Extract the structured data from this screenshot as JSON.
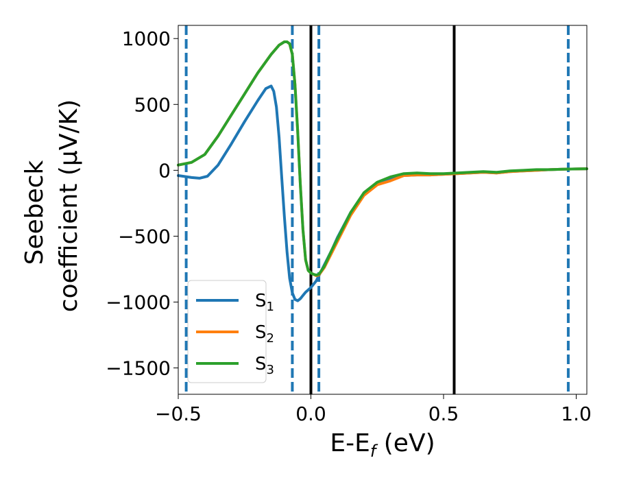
{
  "chart_data": {
    "type": "line",
    "xlabel": "E-E",
    "xlabel_sub": "f",
    "xlabel_suffix": " (eV)",
    "ylabel_line1": "Seebeck",
    "ylabel_line2": "coefficient  (μV/K)",
    "xlim": [
      -0.5,
      1.04
    ],
    "ylim": [
      -1700,
      1100
    ],
    "xticks": [
      -0.5,
      0.0,
      0.5,
      1.0
    ],
    "xtick_labels": [
      "−0.5",
      "0.0",
      "0.5",
      "1.0"
    ],
    "yticks": [
      -1500,
      -1000,
      -500,
      0,
      500,
      1000
    ],
    "ytick_labels": [
      "−1500",
      "−1000",
      "−500",
      "0",
      "500",
      "1000"
    ],
    "vlines_solid": [
      0.0,
      0.54
    ],
    "vlines_dashed": [
      -0.47,
      -0.07,
      0.03,
      0.97
    ],
    "legend_position": "lower-left",
    "series": [
      {
        "name": "S",
        "sub": "1",
        "color": "#1f77b4",
        "x": [
          -0.5,
          -0.45,
          -0.42,
          -0.39,
          -0.35,
          -0.3,
          -0.25,
          -0.2,
          -0.17,
          -0.15,
          -0.14,
          -0.13,
          -0.12,
          -0.11,
          -0.1,
          -0.09,
          -0.08,
          -0.07,
          -0.06,
          -0.05,
          -0.04,
          -0.03,
          -0.02,
          0.0,
          0.02,
          0.05,
          0.08,
          0.1,
          0.15,
          0.2,
          0.25,
          0.3,
          0.35,
          0.4,
          0.45,
          0.5,
          0.55,
          0.6,
          0.65,
          0.7,
          0.75,
          0.8,
          0.85,
          0.9,
          0.95,
          1.0,
          1.04
        ],
        "y": [
          -40,
          -55,
          -60,
          -45,
          40,
          200,
          370,
          530,
          620,
          640,
          600,
          480,
          250,
          -50,
          -350,
          -620,
          -820,
          -930,
          -980,
          -990,
          -975,
          -950,
          -925,
          -890,
          -840,
          -720,
          -600,
          -510,
          -320,
          -180,
          -95,
          -70,
          -40,
          -35,
          -35,
          -30,
          -25,
          -20,
          -15,
          -20,
          -10,
          -5,
          0,
          5,
          8,
          10,
          12
        ]
      },
      {
        "name": "S",
        "sub": "2",
        "color": "#ff7f0e",
        "x": [
          -0.5,
          -0.45,
          -0.4,
          -0.35,
          -0.3,
          -0.25,
          -0.2,
          -0.15,
          -0.12,
          -0.1,
          -0.09,
          -0.08,
          -0.07,
          -0.06,
          -0.05,
          -0.04,
          -0.03,
          -0.02,
          -0.01,
          0.0,
          0.01,
          0.02,
          0.03,
          0.05,
          0.08,
          0.1,
          0.15,
          0.2,
          0.25,
          0.3,
          0.35,
          0.4,
          0.45,
          0.5,
          0.55,
          0.6,
          0.65,
          0.7,
          0.75,
          0.8,
          0.85,
          0.9,
          0.95,
          1.0,
          1.04
        ],
        "y": [
          40,
          60,
          120,
          260,
          420,
          580,
          740,
          880,
          950,
          975,
          975,
          960,
          880,
          650,
          300,
          -100,
          -450,
          -680,
          -760,
          -780,
          -790,
          -800,
          -795,
          -740,
          -620,
          -540,
          -340,
          -190,
          -110,
          -80,
          -40,
          -35,
          -35,
          -30,
          -25,
          -20,
          -15,
          -20,
          -10,
          -5,
          0,
          5,
          8,
          10,
          12
        ]
      },
      {
        "name": "S",
        "sub": "3",
        "color": "#2ca02c",
        "x": [
          -0.5,
          -0.45,
          -0.4,
          -0.35,
          -0.3,
          -0.25,
          -0.2,
          -0.15,
          -0.12,
          -0.1,
          -0.09,
          -0.08,
          -0.07,
          -0.06,
          -0.05,
          -0.04,
          -0.03,
          -0.02,
          -0.01,
          0.0,
          0.01,
          0.02,
          0.03,
          0.05,
          0.08,
          0.1,
          0.15,
          0.2,
          0.25,
          0.3,
          0.35,
          0.4,
          0.45,
          0.5,
          0.55,
          0.6,
          0.65,
          0.7,
          0.75,
          0.8,
          0.85,
          0.9,
          0.95,
          1.0,
          1.04
        ],
        "y": [
          40,
          60,
          120,
          260,
          420,
          580,
          740,
          880,
          950,
          975,
          975,
          960,
          880,
          650,
          300,
          -100,
          -450,
          -680,
          -760,
          -780,
          -790,
          -795,
          -790,
          -730,
          -600,
          -520,
          -320,
          -170,
          -90,
          -50,
          -25,
          -20,
          -25,
          -25,
          -20,
          -15,
          -10,
          -15,
          -5,
          0,
          5,
          5,
          8,
          10,
          12
        ]
      }
    ]
  }
}
